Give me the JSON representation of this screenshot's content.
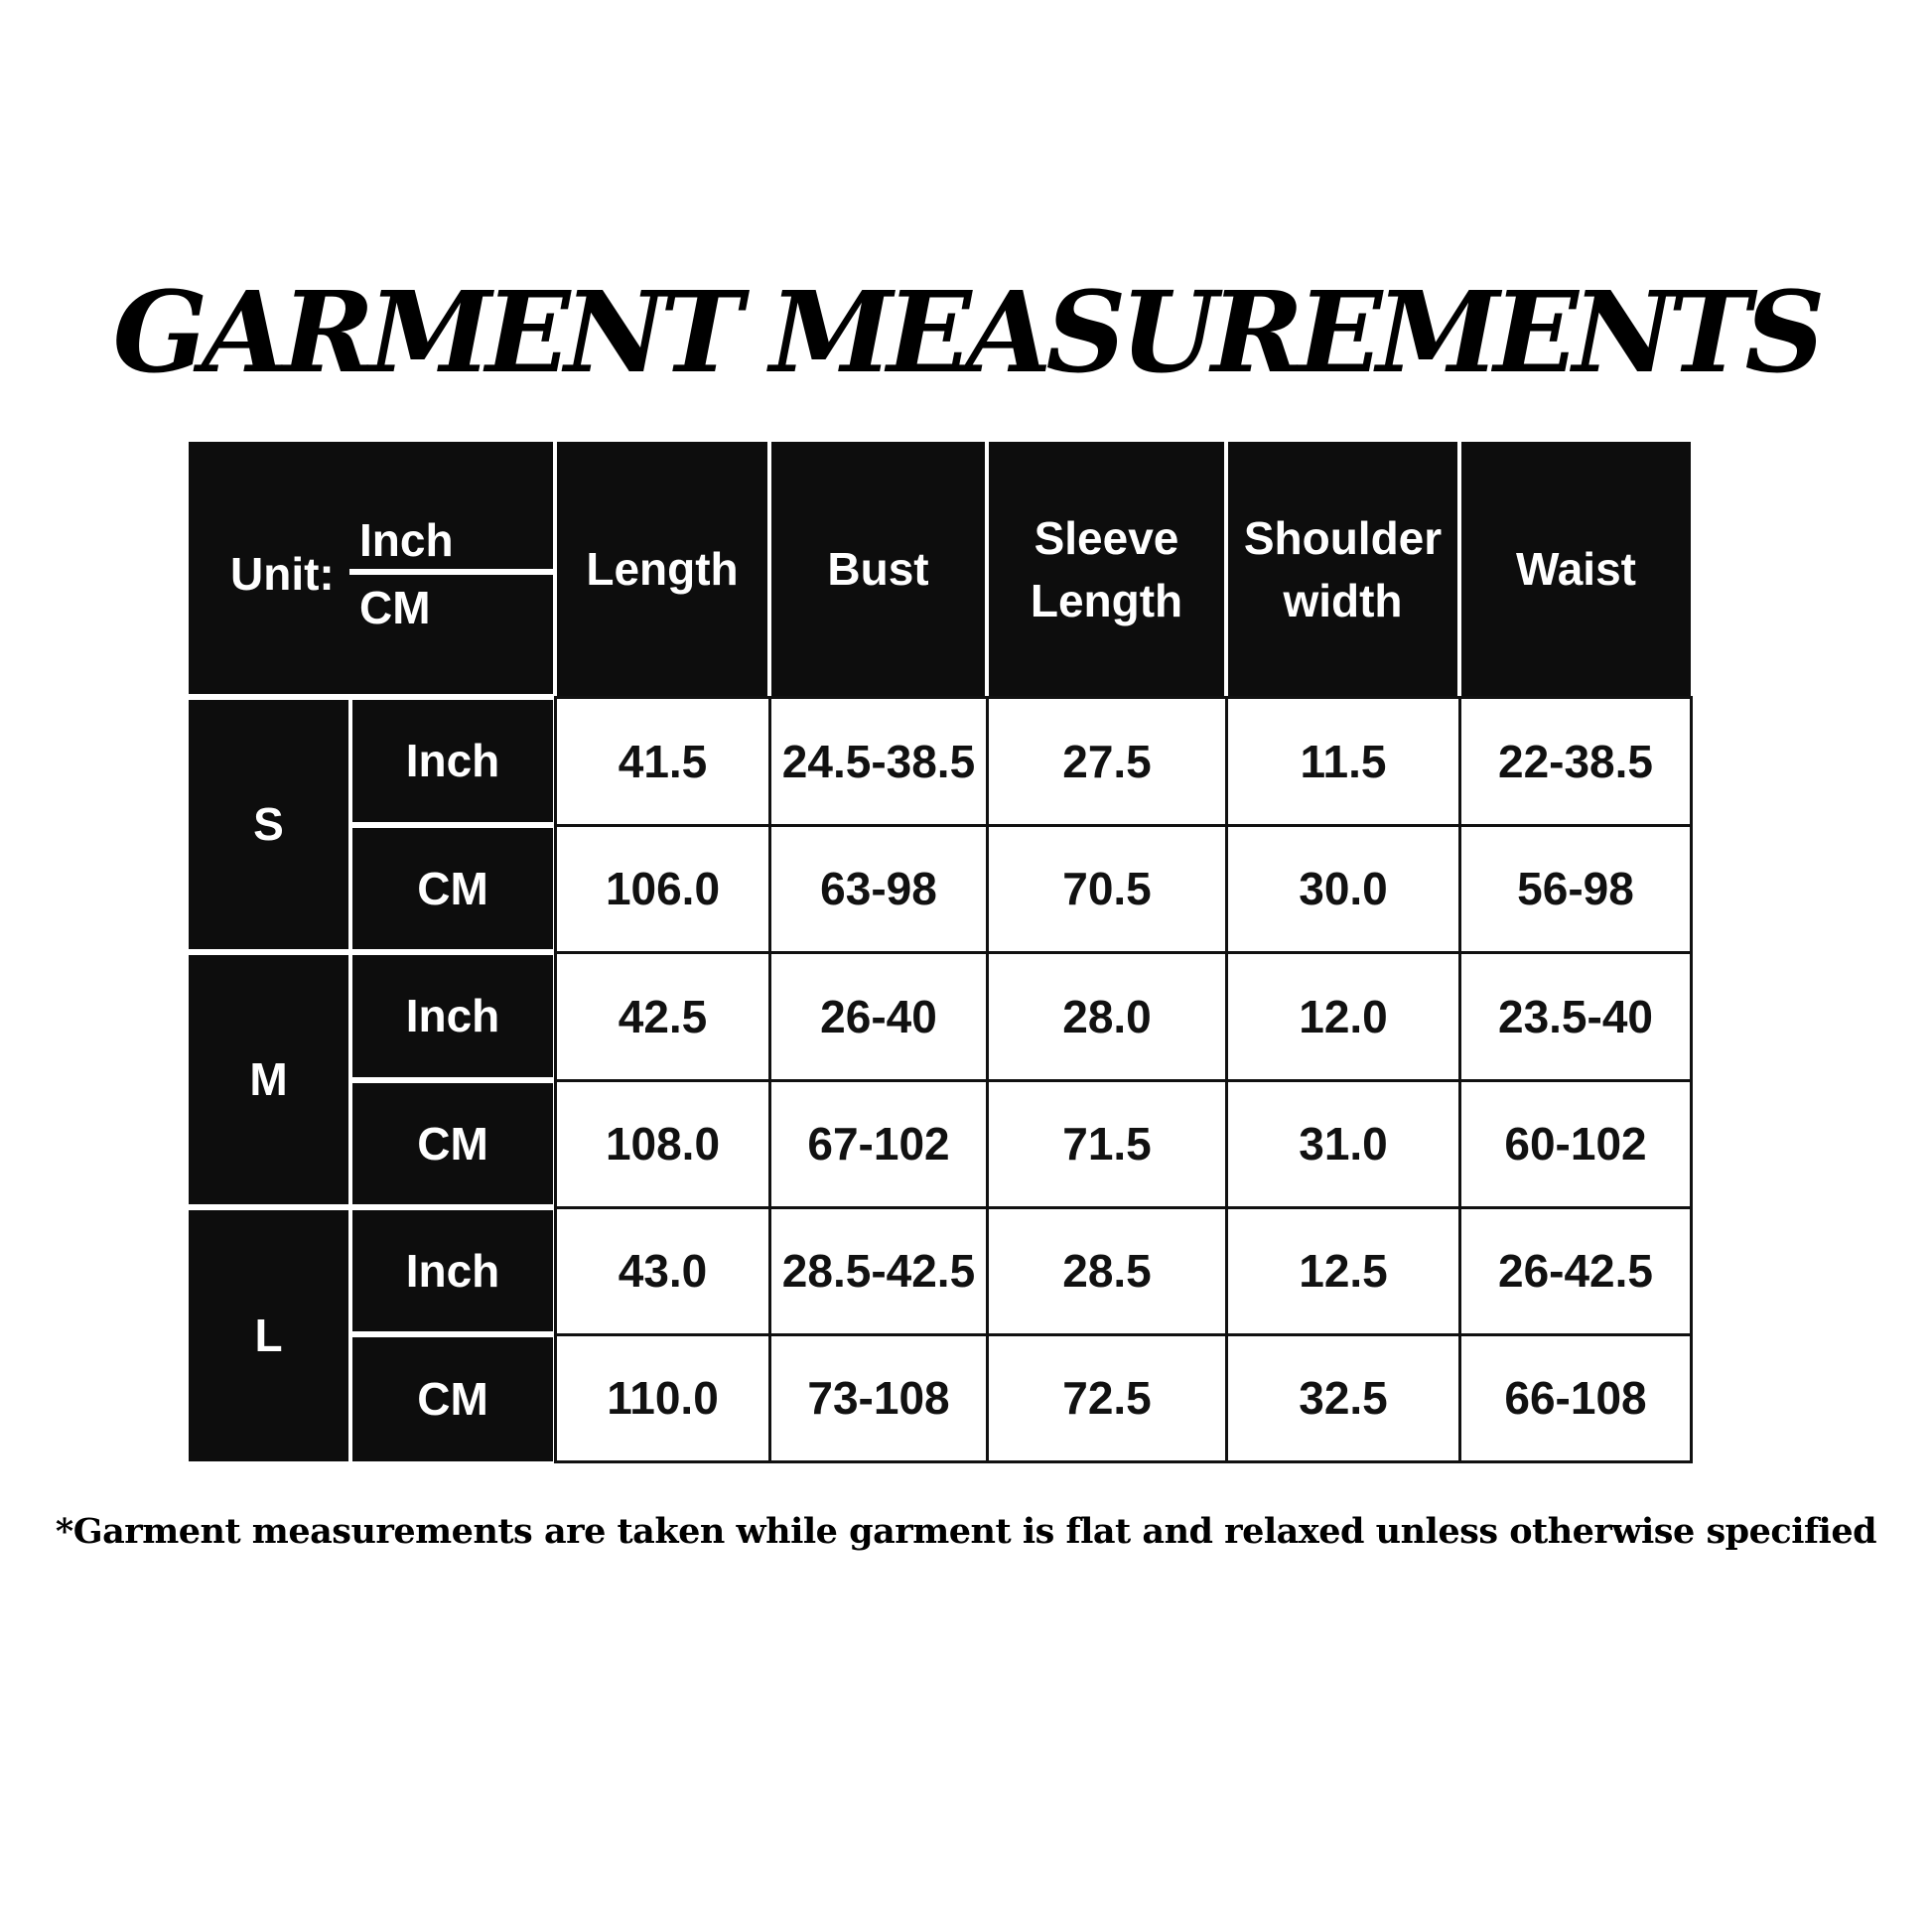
{
  "title": "GARMENT MEASUREMENTS",
  "unit_header": {
    "label": "Unit:",
    "top": "Inch",
    "bottom": "CM"
  },
  "columns": [
    "Length",
    "Bust",
    "Sleeve Length",
    "Shoulder width",
    "Waist"
  ],
  "sizes": [
    {
      "size": "S",
      "rows": [
        {
          "unit": "Inch",
          "values": [
            "41.5",
            "24.5-38.5",
            "27.5",
            "11.5",
            "22-38.5"
          ]
        },
        {
          "unit": "CM",
          "values": [
            "106.0",
            "63-98",
            "70.5",
            "30.0",
            "56-98"
          ]
        }
      ]
    },
    {
      "size": "M",
      "rows": [
        {
          "unit": "Inch",
          "values": [
            "42.5",
            "26-40",
            "28.0",
            "12.0",
            "23.5-40"
          ]
        },
        {
          "unit": "CM",
          "values": [
            "108.0",
            "67-102",
            "71.5",
            "31.0",
            "60-102"
          ]
        }
      ]
    },
    {
      "size": "L",
      "rows": [
        {
          "unit": "Inch",
          "values": [
            "43.0",
            "28.5-42.5",
            "28.5",
            "12.5",
            "26-42.5"
          ]
        },
        {
          "unit": "CM",
          "values": [
            "110.0",
            "73-108",
            "72.5",
            "32.5",
            "66-108"
          ]
        }
      ]
    }
  ],
  "footnote": "*Garment measurements are taken while garment is flat and relaxed unless otherwise specified"
}
